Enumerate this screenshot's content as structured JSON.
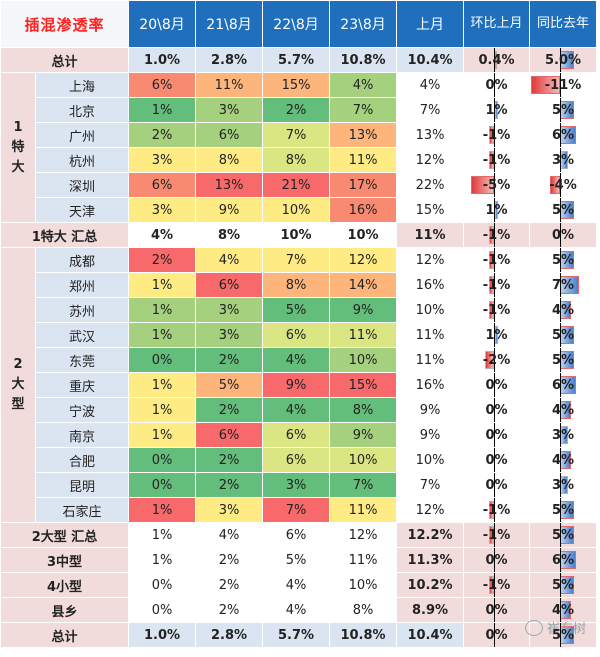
{
  "header": {
    "title": "插混渗透率",
    "cols": [
      "20\\8月",
      "21\\8月",
      "22\\8月",
      "23\\8月",
      "上月",
      "环比上月",
      "同比去年"
    ]
  },
  "colors": {
    "green": "#63be7b",
    "green_mid": "#a5d17e",
    "yellow_green": "#d9e681",
    "yellow": "#ffeb84",
    "orange": "#fdb57c",
    "orange_red": "#f98a72",
    "red": "#f8696b",
    "label_bg": "#f2dcdb",
    "city_bg": "#dbe5f1",
    "header_bg": "#1f6fbd",
    "bar_pos": "#4a80d0",
    "bar_neg": "#e23a3a"
  },
  "rows": [
    {
      "kind": "total",
      "label": "总计",
      "values": [
        "1.0%",
        "2.8%",
        "5.7%",
        "10.8%",
        "10.4%"
      ],
      "mom": "0.4%",
      "yoy": "5.0%",
      "mom_n": 0.4,
      "yoy_n": 5,
      "fills": [
        "",
        "",
        "",
        "",
        ""
      ]
    },
    {
      "kind": "city",
      "group": "1特大",
      "city": "上海",
      "values": [
        "6%",
        "11%",
        "15%",
        "4%",
        "4%"
      ],
      "mom": "0%",
      "yoy": "-11%",
      "mom_n": 0,
      "yoy_n": -11,
      "fills": [
        "orange_red",
        "orange",
        "orange",
        "green_mid",
        ""
      ]
    },
    {
      "kind": "city",
      "group": "1特大",
      "city": "北京",
      "values": [
        "1%",
        "3%",
        "2%",
        "7%",
        "7%"
      ],
      "mom": "1%",
      "yoy": "5%",
      "mom_n": 1,
      "yoy_n": 5,
      "fills": [
        "green",
        "green_mid",
        "green",
        "green_mid",
        ""
      ]
    },
    {
      "kind": "city",
      "group": "1特大",
      "city": "广州",
      "values": [
        "2%",
        "6%",
        "7%",
        "13%",
        "13%"
      ],
      "mom": "-1%",
      "yoy": "6%",
      "mom_n": -1,
      "yoy_n": 6,
      "fills": [
        "green_mid",
        "green_mid",
        "yellow_green",
        "orange",
        ""
      ]
    },
    {
      "kind": "city",
      "group": "1特大",
      "city": "杭州",
      "values": [
        "3%",
        "8%",
        "8%",
        "11%",
        "12%"
      ],
      "mom": "-1%",
      "yoy": "3%",
      "mom_n": -1,
      "yoy_n": 3,
      "fills": [
        "yellow",
        "yellow",
        "yellow_green",
        "yellow",
        ""
      ]
    },
    {
      "kind": "city",
      "group": "1特大",
      "city": "深圳",
      "values": [
        "6%",
        "13%",
        "21%",
        "17%",
        "22%"
      ],
      "mom": "-5%",
      "yoy": "-4%",
      "mom_n": -5,
      "yoy_n": -4,
      "fills": [
        "orange_red",
        "red",
        "red",
        "orange_red",
        ""
      ]
    },
    {
      "kind": "city",
      "group": "1特大",
      "city": "天津",
      "values": [
        "3%",
        "9%",
        "10%",
        "16%",
        "15%"
      ],
      "mom": "1%",
      "yoy": "5%",
      "mom_n": 1,
      "yoy_n": 5,
      "fills": [
        "yellow",
        "yellow",
        "yellow",
        "orange_red",
        ""
      ]
    },
    {
      "kind": "subtotal",
      "label": "1特大 汇总",
      "values": [
        "4%",
        "8%",
        "10%",
        "10%",
        "11%"
      ],
      "mom": "-1%",
      "yoy": "0%",
      "mom_n": -1,
      "yoy_n": 0
    },
    {
      "kind": "city",
      "group": "2大型",
      "city": "成都",
      "values": [
        "2%",
        "4%",
        "7%",
        "12%",
        "12%"
      ],
      "mom": "-1%",
      "yoy": "5%",
      "mom_n": -1,
      "yoy_n": 5,
      "fills": [
        "red",
        "yellow",
        "yellow",
        "yellow",
        ""
      ]
    },
    {
      "kind": "city",
      "group": "2大型",
      "city": "郑州",
      "values": [
        "1%",
        "6%",
        "8%",
        "14%",
        "16%"
      ],
      "mom": "-1%",
      "yoy": "7%",
      "mom_n": -1,
      "yoy_n": 7,
      "fills": [
        "yellow",
        "red",
        "orange",
        "orange",
        ""
      ]
    },
    {
      "kind": "city",
      "group": "2大型",
      "city": "苏州",
      "values": [
        "1%",
        "3%",
        "5%",
        "9%",
        "10%"
      ],
      "mom": "-1%",
      "yoy": "4%",
      "mom_n": -1,
      "yoy_n": 4,
      "fills": [
        "green_mid",
        "green_mid",
        "green",
        "green",
        ""
      ]
    },
    {
      "kind": "city",
      "group": "2大型",
      "city": "武汉",
      "values": [
        "1%",
        "3%",
        "6%",
        "11%",
        "11%"
      ],
      "mom": "1%",
      "yoy": "5%",
      "mom_n": 1,
      "yoy_n": 5,
      "fills": [
        "green_mid",
        "green_mid",
        "yellow_green",
        "yellow_green",
        ""
      ]
    },
    {
      "kind": "city",
      "group": "2大型",
      "city": "东莞",
      "values": [
        "0%",
        "2%",
        "4%",
        "10%",
        "11%"
      ],
      "mom": "-2%",
      "yoy": "5%",
      "mom_n": -2,
      "yoy_n": 5,
      "fills": [
        "green",
        "green",
        "green",
        "green_mid",
        ""
      ]
    },
    {
      "kind": "city",
      "group": "2大型",
      "city": "重庆",
      "values": [
        "1%",
        "5%",
        "9%",
        "15%",
        "16%"
      ],
      "mom": "0%",
      "yoy": "6%",
      "mom_n": 0,
      "yoy_n": 6,
      "fills": [
        "yellow",
        "orange",
        "red",
        "red",
        ""
      ]
    },
    {
      "kind": "city",
      "group": "2大型",
      "city": "宁波",
      "values": [
        "1%",
        "2%",
        "4%",
        "8%",
        "9%"
      ],
      "mom": "0%",
      "yoy": "4%",
      "mom_n": 0,
      "yoy_n": 4,
      "fills": [
        "yellow",
        "green",
        "green",
        "green",
        ""
      ]
    },
    {
      "kind": "city",
      "group": "2大型",
      "city": "南京",
      "values": [
        "1%",
        "6%",
        "6%",
        "9%",
        "9%"
      ],
      "mom": "0%",
      "yoy": "3%",
      "mom_n": 0,
      "yoy_n": 3,
      "fills": [
        "yellow",
        "red",
        "yellow_green",
        "green_mid",
        ""
      ]
    },
    {
      "kind": "city",
      "group": "2大型",
      "city": "合肥",
      "values": [
        "0%",
        "2%",
        "6%",
        "10%",
        "10%"
      ],
      "mom": "0%",
      "yoy": "4%",
      "mom_n": 0,
      "yoy_n": 4,
      "fills": [
        "green",
        "green",
        "yellow_green",
        "yellow_green",
        ""
      ]
    },
    {
      "kind": "city",
      "group": "2大型",
      "city": "昆明",
      "values": [
        "0%",
        "2%",
        "3%",
        "7%",
        "7%"
      ],
      "mom": "0%",
      "yoy": "3%",
      "mom_n": 0,
      "yoy_n": 3,
      "fills": [
        "green",
        "green",
        "green",
        "green",
        ""
      ]
    },
    {
      "kind": "city",
      "group": "2大型",
      "city": "石家庄",
      "values": [
        "1%",
        "3%",
        "7%",
        "11%",
        "12%"
      ],
      "mom": "-1%",
      "yoy": "5%",
      "mom_n": -1,
      "yoy_n": 5,
      "fills": [
        "red",
        "yellow",
        "red",
        "yellow",
        ""
      ]
    },
    {
      "kind": "subtotal",
      "label": "2大型 汇总",
      "values": [
        "1%",
        "4%",
        "6%",
        "12%",
        "12.2%"
      ],
      "mom": "-1%",
      "yoy": "5%",
      "mom_n": -1,
      "yoy_n": 5
    },
    {
      "kind": "subtotal",
      "label": "3中型",
      "values": [
        "1%",
        "2%",
        "5%",
        "11%",
        "11.3%"
      ],
      "mom": "0%",
      "yoy": "6%",
      "mom_n": 0,
      "yoy_n": 6
    },
    {
      "kind": "subtotal",
      "label": "4小型",
      "values": [
        "0%",
        "2%",
        "4%",
        "10%",
        "10.2%"
      ],
      "mom": "-1%",
      "yoy": "5%",
      "mom_n": -1,
      "yoy_n": 5
    },
    {
      "kind": "subtotal",
      "label": "县乡",
      "values": [
        "0%",
        "2%",
        "4%",
        "8%",
        "8.9%"
      ],
      "mom": "0%",
      "yoy": "4%",
      "mom_n": 0,
      "yoy_n": 4
    },
    {
      "kind": "total",
      "label": "总计",
      "values": [
        "1.0%",
        "2.8%",
        "5.7%",
        "10.8%",
        "10.4%"
      ],
      "mom": "0%",
      "yoy": "5%",
      "mom_n": 0,
      "yoy_n": 5,
      "fills": [
        "",
        "",
        "",
        "",
        ""
      ]
    }
  ],
  "groups": {
    "1特大": [
      "1",
      "特",
      "大"
    ],
    "2大型": [
      "2",
      "大",
      "型"
    ]
  },
  "watermark": "崔东树"
}
